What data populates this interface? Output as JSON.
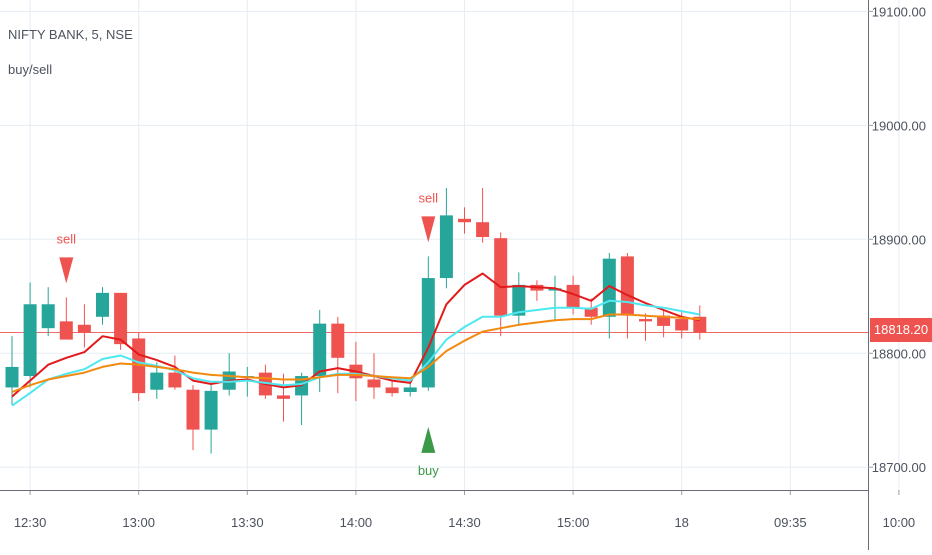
{
  "symbol": "NIFTY BANK, 5, NSE",
  "study": "buy/sell",
  "last_price_label": "18818.20",
  "colors": {
    "up": "#26a69a",
    "down": "#ef5350",
    "ema_fast": "#e31a1c",
    "ema_cyan": "#4ee8f0",
    "ema_orange": "#f38a10",
    "sell_marker": "#ef5350",
    "buy_marker": "#3a9a47",
    "grid": "#e6edf3",
    "axis_text": "#4c525e",
    "price_line": "#ef5350"
  },
  "chart_data": {
    "type": "candlestick",
    "ylim": [
      18680,
      19110
    ],
    "y_ticks": [
      "19100.00",
      "19000.00",
      "18900.00",
      "18800.00",
      "18700.00"
    ],
    "y_tick_values": [
      19100,
      19000,
      18900,
      18800,
      18700
    ],
    "x_tick_labels": [
      "12:30",
      "13:00",
      "13:30",
      "14:00",
      "14:30",
      "15:00",
      "18",
      "09:35",
      "10:00"
    ],
    "x_tick_bar_index": [
      1,
      7,
      13,
      19,
      25,
      31,
      37,
      43,
      49
    ],
    "last_price": 18818.2,
    "candles": [
      {
        "o": 18770,
        "h": 18815,
        "l": 18755,
        "c": 18788
      },
      {
        "o": 18780,
        "h": 18862,
        "l": 18770,
        "c": 18843
      },
      {
        "o": 18822,
        "h": 18858,
        "l": 18815,
        "c": 18843
      },
      {
        "o": 18828,
        "h": 18849,
        "l": 18815,
        "c": 18812
      },
      {
        "o": 18825,
        "h": 18843,
        "l": 18805,
        "c": 18818
      },
      {
        "o": 18832,
        "h": 18858,
        "l": 18825,
        "c": 18853
      },
      {
        "o": 18853,
        "h": 18853,
        "l": 18803,
        "c": 18808
      },
      {
        "o": 18813,
        "h": 18818,
        "l": 18758,
        "c": 18765
      },
      {
        "o": 18768,
        "h": 18792,
        "l": 18760,
        "c": 18783
      },
      {
        "o": 18783,
        "h": 18798,
        "l": 18768,
        "c": 18770
      },
      {
        "o": 18768,
        "h": 18772,
        "l": 18715,
        "c": 18733
      },
      {
        "o": 18733,
        "h": 18772,
        "l": 18712,
        "c": 18767
      },
      {
        "o": 18768,
        "h": 18800,
        "l": 18763,
        "c": 18784
      },
      {
        "o": 18780,
        "h": 18788,
        "l": 18762,
        "c": 18780
      },
      {
        "o": 18783,
        "h": 18790,
        "l": 18760,
        "c": 18763
      },
      {
        "o": 18763,
        "h": 18782,
        "l": 18740,
        "c": 18760
      },
      {
        "o": 18763,
        "h": 18783,
        "l": 18737,
        "c": 18780
      },
      {
        "o": 18780,
        "h": 18838,
        "l": 18766,
        "c": 18826
      },
      {
        "o": 18826,
        "h": 18832,
        "l": 18765,
        "c": 18796
      },
      {
        "o": 18790,
        "h": 18810,
        "l": 18758,
        "c": 18778
      },
      {
        "o": 18777,
        "h": 18800,
        "l": 18760,
        "c": 18770
      },
      {
        "o": 18770,
        "h": 18776,
        "l": 18762,
        "c": 18765
      },
      {
        "o": 18766,
        "h": 18775,
        "l": 18762,
        "c": 18770
      },
      {
        "o": 18770,
        "h": 18885,
        "l": 18767,
        "c": 18866
      },
      {
        "o": 18866,
        "h": 18945,
        "l": 18857,
        "c": 18921
      },
      {
        "o": 18918,
        "h": 18928,
        "l": 18905,
        "c": 18915
      },
      {
        "o": 18915,
        "h": 18945,
        "l": 18897,
        "c": 18902
      },
      {
        "o": 18901,
        "h": 18906,
        "l": 18815,
        "c": 18833
      },
      {
        "o": 18833,
        "h": 18871,
        "l": 18824,
        "c": 18860
      },
      {
        "o": 18860,
        "h": 18864,
        "l": 18846,
        "c": 18855
      },
      {
        "o": 18855,
        "h": 18868,
        "l": 18828,
        "c": 18857
      },
      {
        "o": 18860,
        "h": 18868,
        "l": 18834,
        "c": 18840
      },
      {
        "o": 18840,
        "h": 18848,
        "l": 18825,
        "c": 18832
      },
      {
        "o": 18832,
        "h": 18888,
        "l": 18813,
        "c": 18883
      },
      {
        "o": 18885,
        "h": 18888,
        "l": 18813,
        "c": 18833
      },
      {
        "o": 18830,
        "h": 18835,
        "l": 18811,
        "c": 18828
      },
      {
        "o": 18833,
        "h": 18838,
        "l": 18814,
        "c": 18824
      },
      {
        "o": 18830,
        "h": 18836,
        "l": 18813,
        "c": 18820
      },
      {
        "o": 18832,
        "h": 18842,
        "l": 18812,
        "c": 18818
      }
    ],
    "series": [
      {
        "color": "#e31a1c",
        "values": [
          18762,
          18776,
          18790,
          18796,
          18801,
          18815,
          18812,
          18799,
          18794,
          18788,
          18776,
          18773,
          18776,
          18777,
          18773,
          18770,
          18772,
          18784,
          18787,
          18784,
          18780,
          18776,
          18774,
          18805,
          18843,
          18860,
          18870,
          18858,
          18859,
          18858,
          18857,
          18852,
          18846,
          18859,
          18851,
          18844,
          18838,
          18832,
          18829
        ]
      },
      {
        "color": "#4ee8f0",
        "values": [
          18754,
          18765,
          18777,
          18782,
          18786,
          18795,
          18798,
          18792,
          18789,
          18785,
          18778,
          18775,
          18775,
          18776,
          18774,
          18772,
          18773,
          18779,
          18782,
          18782,
          18780,
          18778,
          18776,
          18792,
          18812,
          18823,
          18832,
          18832,
          18836,
          18838,
          18840,
          18840,
          18839,
          18846,
          18845,
          18842,
          18840,
          18837,
          18834
        ]
      },
      {
        "color": "#f38a10",
        "values": [
          18766,
          18772,
          18777,
          18780,
          18783,
          18788,
          18791,
          18790,
          18788,
          18786,
          18783,
          18781,
          18780,
          18779,
          18778,
          18777,
          18777,
          18779,
          18781,
          18781,
          18780,
          18779,
          18778,
          18788,
          18802,
          18811,
          18819,
          18822,
          18825,
          18827,
          18829,
          18830,
          18830,
          18834,
          18834,
          18833,
          18832,
          18831,
          18830
        ]
      }
    ],
    "signals": [
      {
        "type": "sell",
        "index": 3,
        "label": "sell",
        "color": "#ef5350"
      },
      {
        "type": "sell",
        "index": 23,
        "label": "sell",
        "color": "#ef5350"
      },
      {
        "type": "buy",
        "index": 23,
        "label": "buy",
        "color": "#3a9a47"
      }
    ]
  }
}
